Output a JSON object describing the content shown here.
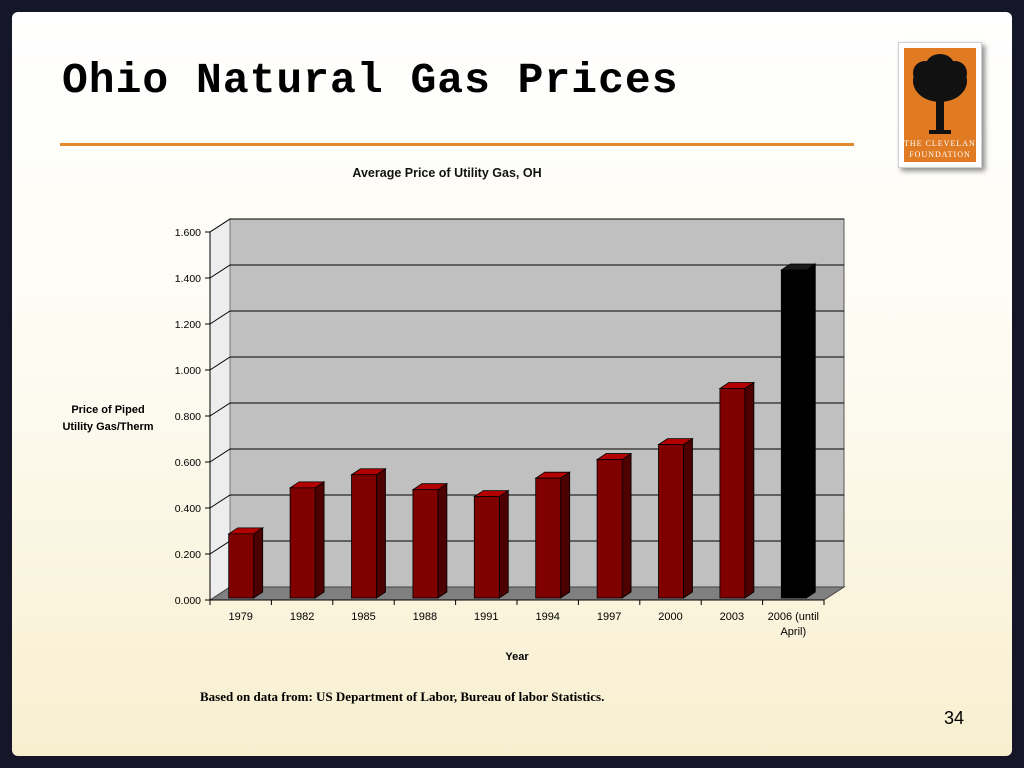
{
  "slide": {
    "title": "Ohio Natural Gas Prices",
    "source": "Based on data from: US Department of Labor, Bureau of labor Statistics.",
    "page_number": "34"
  },
  "logo": {
    "line1": "THE CLEVELAND",
    "line2": "FOUNDATION",
    "icon": "oak-tree-icon",
    "colors": {
      "background": "#e07b24",
      "tree": "#111111"
    }
  },
  "chart_data": {
    "type": "bar",
    "title": "Average Price of Utility Gas, OH",
    "xlabel": "Year",
    "ylabel": "Price of Piped Utility Gas/Therm",
    "ylabel_lines": [
      "Price of Piped",
      "Utility Gas/Therm"
    ],
    "categories": [
      "1979",
      "1982",
      "1985",
      "1988",
      "1991",
      "1994",
      "1997",
      "2000",
      "2003",
      "2006 (until April)"
    ],
    "category_lines": [
      [
        "1979"
      ],
      [
        "1982"
      ],
      [
        "1985"
      ],
      [
        "1988"
      ],
      [
        "1991"
      ],
      [
        "1994"
      ],
      [
        "1997"
      ],
      [
        "2000"
      ],
      [
        "2003"
      ],
      [
        "2006 (until",
        "April)"
      ]
    ],
    "values": [
      0.305,
      0.505,
      0.562,
      0.497,
      0.467,
      0.547,
      0.628,
      0.693,
      0.937,
      1.452
    ],
    "ylim": [
      0,
      1.6
    ],
    "yticks": [
      "0.000",
      "0.200",
      "0.400",
      "0.600",
      "0.800",
      "1.000",
      "1.200",
      "1.400",
      "1.600"
    ],
    "grid": true,
    "legend": "none",
    "style": "3d",
    "colors": {
      "bar": "#800000",
      "highlight_bar": "#000000",
      "plot_background": "#c0c0c0",
      "floor": "#808080"
    }
  }
}
